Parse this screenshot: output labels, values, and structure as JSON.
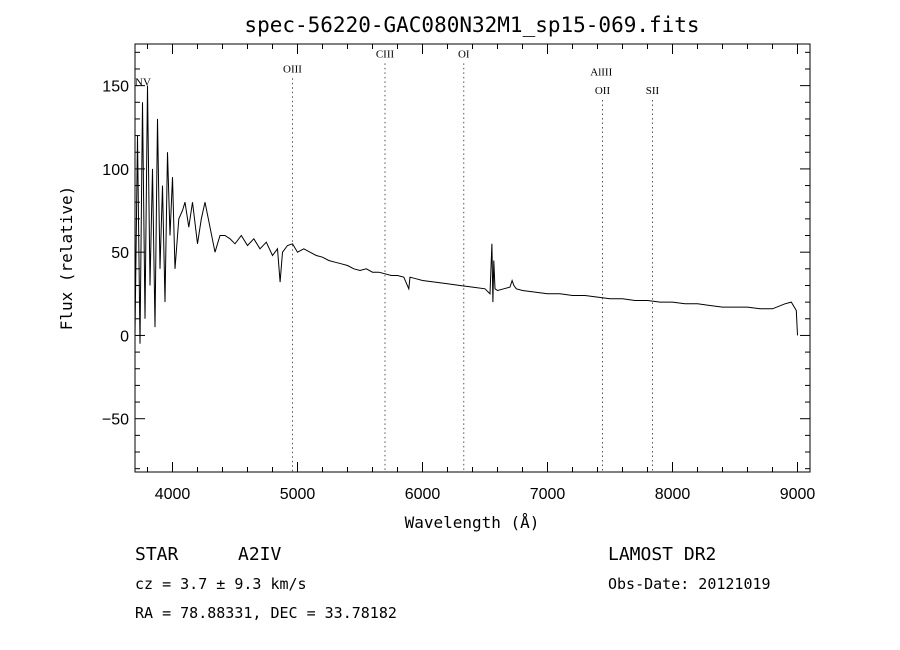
{
  "chart_data": {
    "type": "line",
    "title": "spec-56220-GAC080N32M1_sp15-069.fits",
    "xlabel": "Wavelength (Å)",
    "ylabel": "Flux (relative)",
    "xlim": [
      3700,
      9100
    ],
    "ylim": [
      -82,
      175
    ],
    "x_ticks": [
      4000,
      5000,
      6000,
      7000,
      8000,
      9000
    ],
    "y_ticks": [
      -50,
      0,
      50,
      100,
      150
    ],
    "x": [
      3700,
      3720,
      3740,
      3760,
      3780,
      3800,
      3820,
      3840,
      3860,
      3880,
      3900,
      3920,
      3940,
      3960,
      3980,
      4000,
      4020,
      4050,
      4080,
      4100,
      4130,
      4160,
      4200,
      4230,
      4260,
      4300,
      4340,
      4380,
      4420,
      4460,
      4500,
      4550,
      4600,
      4650,
      4700,
      4750,
      4800,
      4840,
      4861,
      4880,
      4920,
      4960,
      5000,
      5050,
      5100,
      5150,
      5200,
      5250,
      5300,
      5350,
      5400,
      5450,
      5500,
      5550,
      5600,
      5650,
      5700,
      5750,
      5800,
      5850,
      5890,
      5900,
      5950,
      6000,
      6100,
      6200,
      6300,
      6400,
      6500,
      6540,
      6555,
      6563,
      6570,
      6580,
      6600,
      6650,
      6700,
      6717,
      6731,
      6750,
      6800,
      6900,
      7000,
      7100,
      7200,
      7300,
      7400,
      7500,
      7600,
      7700,
      7800,
      7900,
      8000,
      8100,
      8200,
      8300,
      8400,
      8500,
      8600,
      8700,
      8800,
      8900,
      8950,
      8990,
      9000
    ],
    "series": [
      {
        "y": [
          0,
          120,
          -5,
          140,
          10,
          150,
          30,
          100,
          5,
          130,
          40,
          90,
          20,
          110,
          60,
          95,
          40,
          70,
          75,
          80,
          65,
          80,
          55,
          70,
          80,
          65,
          50,
          60,
          60,
          58,
          55,
          60,
          54,
          58,
          52,
          56,
          48,
          52,
          32,
          50,
          54,
          55,
          50,
          52,
          50,
          48,
          47,
          45,
          44,
          43,
          42,
          40,
          39,
          40,
          38,
          38,
          37,
          36,
          36,
          35,
          28,
          35,
          34,
          33,
          32,
          31,
          30,
          29,
          28,
          25,
          55,
          20,
          45,
          28,
          27,
          28,
          29,
          33,
          30,
          28,
          27,
          26,
          25,
          25,
          24,
          24,
          23,
          22,
          22,
          21,
          21,
          20,
          20,
          19,
          19,
          18,
          17,
          17,
          17,
          16,
          16,
          19,
          20,
          15,
          0
        ]
      }
    ],
    "spectral_lines": [
      {
        "label": "NV",
        "x": 3700,
        "y": 150
      },
      {
        "label": "OIII",
        "x": 4960,
        "y": 158
      },
      {
        "label": "CIII",
        "x": 5700,
        "y": 167
      },
      {
        "label": "OI",
        "x": 6330,
        "y": 167
      },
      {
        "label": "AlIII",
        "x": 7430,
        "y": 156
      },
      {
        "label": "OII",
        "x": 7440,
        "y": 145
      },
      {
        "label": "SII",
        "x": 7840,
        "y": 145
      }
    ],
    "grid": false,
    "legend": "none"
  },
  "info": {
    "object_class": "STAR",
    "subclass": "A2IV",
    "survey": "LAMOST DR2",
    "cz": "cz = 3.7 ± 9.3 km/s",
    "obs_date": "Obs-Date: 20121019",
    "coords": "RA =  78.88331, DEC =  33.78182"
  }
}
